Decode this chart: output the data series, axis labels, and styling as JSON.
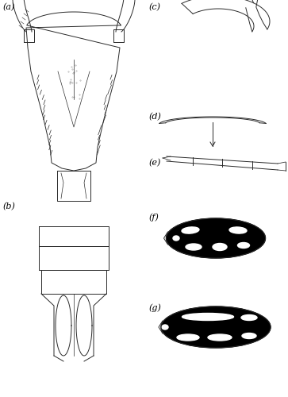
{
  "fig_width": 3.63,
  "fig_height": 5.0,
  "dpi": 100,
  "bg_color": "#ffffff",
  "panel_labels": [
    "(a)",
    "(b)",
    "(c)",
    "(d)",
    "(e)",
    "(f)",
    "(g)"
  ],
  "label_fontsize": 8,
  "line_color": "#2a2a2a"
}
